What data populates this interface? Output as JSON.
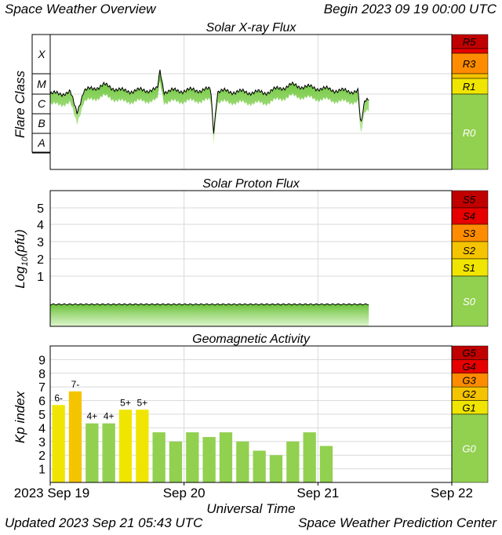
{
  "header": {
    "title": "Space Weather Overview",
    "begin": "Begin 2023 09 19 00:00 UTC"
  },
  "footer": {
    "updated": "Updated 2023 Sep 21 05:43 UTC",
    "source": "Space Weather Prediction Center"
  },
  "colors": {
    "green": "#92d050",
    "yellow": "#f0e500",
    "gold": "#f5c400",
    "orange": "#ff8c00",
    "red": "#e60000",
    "darkred": "#c00000",
    "grid": "#d9d9d9"
  },
  "chart_data": [
    {
      "type": "line",
      "title": "Solar X-ray Flux",
      "ylabel": "Flare Class",
      "class_labels": [
        "X",
        "M",
        "C",
        "B",
        "A"
      ],
      "scale_labels": [
        "R5",
        "R3",
        "R1",
        "R0"
      ],
      "x_range_days": [
        0,
        3
      ],
      "approx_series": {
        "name": "",
        "points_day_logflux": [
          [
            0,
            -6.0
          ],
          [
            0.15,
            -5.95
          ],
          [
            0.2,
            -6.6
          ],
          [
            0.25,
            -5.9
          ],
          [
            0.4,
            -5.7
          ],
          [
            0.55,
            -5.9
          ],
          [
            0.8,
            -5.85
          ],
          [
            0.82,
            -5.2
          ],
          [
            0.85,
            -5.9
          ],
          [
            1.2,
            -5.85
          ],
          [
            1.22,
            -7.3
          ],
          [
            1.25,
            -5.9
          ],
          [
            1.6,
            -5.95
          ],
          [
            1.8,
            -5.7
          ],
          [
            2.2,
            -5.9
          ],
          [
            2.3,
            -5.9
          ],
          [
            2.32,
            -7.1
          ],
          [
            2.35,
            -6.2
          ],
          [
            2.38,
            -6.1
          ]
        ]
      }
    },
    {
      "type": "area",
      "title": "Solar Proton Flux",
      "ylabel": "Log10(pfu)",
      "ylabel_main": "Log",
      "ylabel_sub": "10",
      "ylabel_rest": "(pfu)",
      "yticks": [
        "1",
        "2",
        "3",
        "4",
        "5"
      ],
      "scale_labels": [
        "S5",
        "S4",
        "S3",
        "S2",
        "S1",
        "S0"
      ],
      "approx_series": {
        "name": "",
        "level_log10": -0.2
      }
    },
    {
      "type": "bar",
      "title": "Geomagnetic Activity",
      "ylabel": "Kp index",
      "ylim": [
        0,
        10
      ],
      "yticks": [
        "1",
        "2",
        "3",
        "4",
        "5",
        "6",
        "7",
        "8",
        "9"
      ],
      "scale_labels": [
        "G5",
        "G4",
        "G3",
        "G2",
        "G1",
        "G0"
      ],
      "xticks": [
        "2023 Sep 19",
        "Sep 20",
        "Sep 21",
        "Sep 22"
      ],
      "xlabel": "Universal Time",
      "values": [
        5.67,
        6.67,
        4.33,
        4.33,
        5.33,
        5.33,
        3.67,
        3.0,
        3.67,
        3.33,
        3.67,
        3.0,
        2.33,
        2.0,
        3.0,
        3.67,
        2.67
      ],
      "labels": [
        "6-",
        "7-",
        "4+",
        "4+",
        "5+",
        "5+",
        "",
        "",
        "",
        "",
        "",
        "",
        "",
        "",
        "",
        "",
        ""
      ]
    }
  ]
}
